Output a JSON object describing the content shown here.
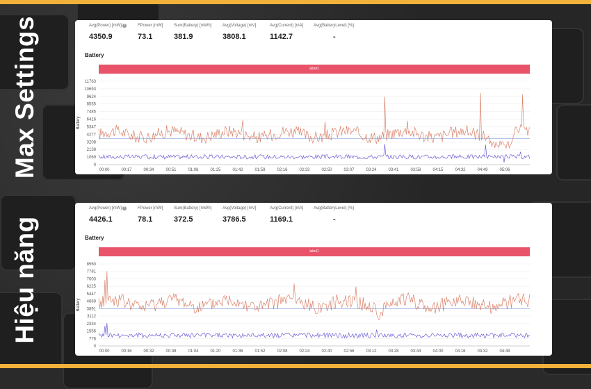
{
  "app": {
    "accent": "#f2b13a",
    "series_colors": {
      "power": "#d9826a",
      "current": "#6b5fd6",
      "baseline": "#8ba3e0"
    }
  },
  "sections": [
    {
      "side_label": "Max Settings",
      "metrics": [
        {
          "label": "Avg(Power) [mW]",
          "value": "4350.9",
          "has_help": true
        },
        {
          "label": "FPower [mW]",
          "value": "73.1"
        },
        {
          "label": "Sum(Battery) [mWh]",
          "value": "381.9"
        },
        {
          "label": "Avg(Voltage) [mV]",
          "value": "3808.1"
        },
        {
          "label": "Avg(Current) [mA]",
          "value": "1142.7"
        },
        {
          "label": "Avg(BatteryLevel) [%]",
          "value": "-"
        }
      ],
      "section_title": "Battery",
      "legend_bar_label": "label1",
      "y_axis_title": "Battery",
      "y_ticks": [
        "0",
        "1069",
        "2138",
        "3208",
        "4277",
        "5347",
        "6416",
        "7485",
        "8555",
        "9624",
        "10693",
        "11763"
      ],
      "x_ticks": [
        "00:00",
        "00:17",
        "00:34",
        "00:51",
        "01:08",
        "01:25",
        "01:42",
        "01:59",
        "02:16",
        "02:33",
        "02:50",
        "03:07",
        "03:24",
        "03:41",
        "03:58",
        "04:15",
        "04:32",
        "04:49",
        "05:06"
      ]
    },
    {
      "side_label": "Hiệu năng",
      "metrics": [
        {
          "label": "Avg(Power) [mW]",
          "value": "4426.1",
          "has_help": true
        },
        {
          "label": "FPower [mW]",
          "value": "78.1"
        },
        {
          "label": "Sum(Battery) [mWh]",
          "value": "372.5"
        },
        {
          "label": "Avg(Voltage) [mV]",
          "value": "3786.5"
        },
        {
          "label": "Avg(Current) [mA]",
          "value": "1169.1"
        },
        {
          "label": "Avg(BatteryLevel) [%]",
          "value": "-"
        }
      ],
      "section_title": "Battery",
      "legend_bar_label": "label1",
      "y_axis_title": "Battery",
      "y_ticks": [
        "0",
        "778",
        "1556",
        "2334",
        "3112",
        "3891",
        "4669",
        "5447",
        "6225",
        "7003",
        "7781",
        "8560"
      ],
      "x_ticks": [
        "00:00",
        "00:16",
        "00:32",
        "00:48",
        "01:04",
        "01:20",
        "01:36",
        "01:52",
        "02:08",
        "02:24",
        "02:40",
        "02:56",
        "03:12",
        "03:28",
        "03:44",
        "04:00",
        "04:16",
        "04:32",
        "04:48"
      ]
    }
  ],
  "chart_data": [
    {
      "type": "line",
      "ylabel": "Battery",
      "ylim": [
        0,
        11763
      ],
      "series": [
        {
          "name": "label1",
          "values": []
        }
      ],
      "notes": "Power trace fluctuates around ~4300 mW with spikes up to ~9600; lower trace around ~1100."
    },
    {
      "type": "line",
      "ylabel": "Battery",
      "ylim": [
        0,
        8560
      ],
      "series": [
        {
          "name": "label1",
          "values": []
        }
      ],
      "notes": "Power trace fluctuates around ~4400 mW with an early spike to ~7800; lower trace around ~1100."
    }
  ]
}
